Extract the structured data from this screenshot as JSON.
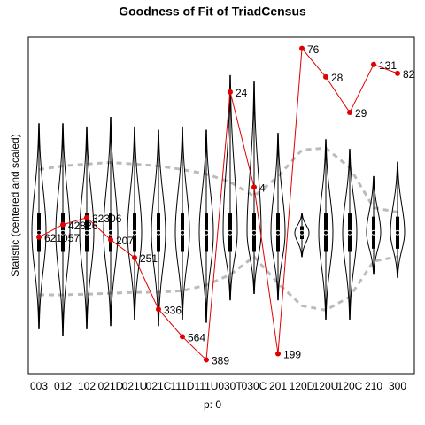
{
  "chart_data": {
    "type": "gof-violin",
    "title": "Goodness of Fit of TriadCensus",
    "y_label": "Statistic (centered and scaled)",
    "x_label": "p: 0",
    "categories": [
      "003",
      "012",
      "102",
      "021D",
      "021U",
      "021C",
      "111D",
      "111U",
      "030T",
      "030C",
      "201",
      "120D",
      "120U",
      "120C",
      "210",
      "300"
    ],
    "values": [
      -0.14,
      0.25,
      0.47,
      -0.22,
      -0.78,
      -2.39,
      -3.25,
      -3.97,
      4.39,
      1.42,
      -3.78,
      5.75,
      4.86,
      3.75,
      5.25,
      4.97
    ],
    "counts": [
      621057,
      42826,
      32306,
      207,
      251,
      336,
      564,
      389,
      24,
      4,
      199,
      76,
      28,
      29,
      131,
      82
    ],
    "color": "#e00000",
    "sim_low": [
      -3.0,
      -3.2,
      -3.0,
      -2.9,
      -2.7,
      -2.9,
      -2.7,
      -2.8,
      -2.1,
      -1.9,
      -2.1,
      -0.75,
      -2.7,
      -2.7,
      -1.3,
      -1.4
    ],
    "sim_high": [
      3.4,
      3.4,
      3.3,
      3.6,
      3.3,
      3.2,
      3.3,
      3.2,
      4.9,
      4.7,
      3.1,
      0.6,
      2.9,
      2.6,
      1.75,
      2.2
    ],
    "q1": [
      -0.6,
      -0.6,
      -0.6,
      -0.6,
      -0.6,
      -0.6,
      -0.6,
      -0.6,
      -0.6,
      -0.6,
      -0.6,
      -0.2,
      -0.6,
      -0.6,
      -0.5,
      -0.5
    ],
    "median": [
      0,
      0,
      0,
      0,
      0,
      0,
      0,
      0,
      0,
      0,
      0,
      0,
      0,
      0,
      0,
      0
    ],
    "q3": [
      0.6,
      0.6,
      0.6,
      0.6,
      0.6,
      0.6,
      0.6,
      0.6,
      0.6,
      0.6,
      0.6,
      0.2,
      0.6,
      0.6,
      0.5,
      0.5
    ],
    "bound_upper": [
      1.97,
      2.08,
      2.14,
      2.19,
      2.14,
      2.08,
      1.97,
      1.83,
      1.58,
      1.14,
      1.75,
      2.58,
      2.64,
      2.03,
      0.78,
      0.64
    ],
    "bound_lower": [
      -1.94,
      -1.94,
      -1.92,
      -1.89,
      -1.86,
      -1.86,
      -1.81,
      -1.64,
      -1.31,
      -0.75,
      -1.58,
      -2.28,
      -2.42,
      -2.0,
      -0.89,
      -0.75
    ],
    "ylim": [
      -4.4,
      6.1
    ]
  }
}
